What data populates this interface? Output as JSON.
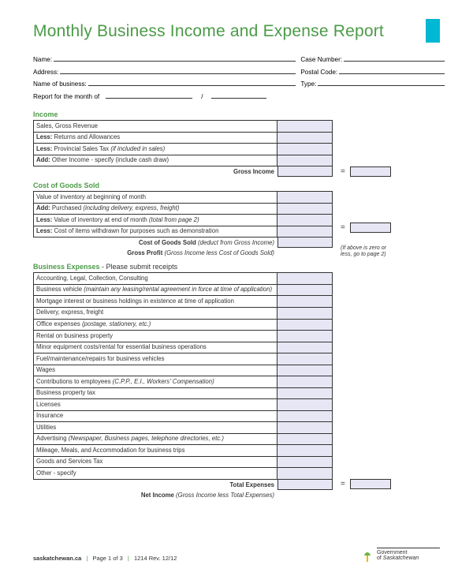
{
  "colors": {
    "accent_green": "#4b9b47",
    "accent_cyan": "#00b8d4",
    "field_fill": "#e6e6f5",
    "border": "#333333"
  },
  "title": "Monthly Business Income and Expense Report",
  "fields": {
    "name": "Name:",
    "case_number": "Case Number:",
    "address": "Address:",
    "postal_code": "Postal Code:",
    "business_name": "Name of business:",
    "type": "Type:",
    "report_month": "Report for the month of"
  },
  "income": {
    "heading": "Income",
    "rows": [
      {
        "label": "Sales, Gross Revenue"
      },
      {
        "bold": "Less:",
        "label": " Returns and Allowances"
      },
      {
        "bold": "Less:",
        "label": " Provincial Sales Tax ",
        "ital": "(if included in sales)"
      },
      {
        "bold": "Add:",
        "label": " Other Income - specify (include cash draw)"
      }
    ],
    "total_label": "Gross Income"
  },
  "cogs": {
    "heading": "Cost of Goods Sold",
    "rows": [
      {
        "label": "Value of inventory at beginning of month"
      },
      {
        "bold": "Add:",
        "label": " Purchased ",
        "ital": "(including delivery, express, freight)"
      },
      {
        "bold": "Less:",
        "label": " Value of inventory at end of month ",
        "ital": "(total from page 2)"
      },
      {
        "bold": "Less:",
        "label": " Cost of items withdrawn for purposes such as demonstration"
      }
    ],
    "total_label": "Cost of Goods Sold",
    "total_ital": "(deduct from Gross Income)",
    "profit_label": "Gross Profit",
    "profit_ital": "(Gross Income less Cost of Goods Sold)",
    "note": "(If above is zero or less, go to page 2)"
  },
  "expenses": {
    "heading": "Business Expenses",
    "sub": " - Please submit receipts",
    "rows": [
      "Accounting, Legal, Collection, Consulting",
      {
        "label": "Business vehicle ",
        "ital": "(maintain any leasing/rental agreement in force at time of application)"
      },
      "Mortgage interest or business holdings in existence at time of application",
      "Delivery, express, freight",
      {
        "label": "Office expenses ",
        "ital": "(postage, stationery, etc.)"
      },
      "Rental on business property",
      "Minor equipment costs/rental for essential business operations",
      "Fuel/maintenance/repairs for business vehicles",
      "Wages",
      {
        "label": "Contributions to employees ",
        "ital": "(C.P.P., E.I., Workers' Compensation)"
      },
      "Business property tax",
      "Licenses",
      "Insurance",
      "Utilities",
      {
        "label": "Advertising ",
        "ital": "(Newspaper, Business pages, telephone directories, etc.)"
      },
      "Mileage, Meals, and Accommodation for business trips",
      "Goods and Services Tax",
      "Other - specify"
    ],
    "total_label": "Total Expenses",
    "net_label": "Net Income",
    "net_ital": "(Gross Income less Total Expenses)"
  },
  "footer": {
    "site": "saskatchewan.ca",
    "page": "Page 1 of 3",
    "rev": "1214   Rev. 12/12",
    "gov1": "Government",
    "gov2": "of ",
    "gov3": "Saskatchewan"
  }
}
